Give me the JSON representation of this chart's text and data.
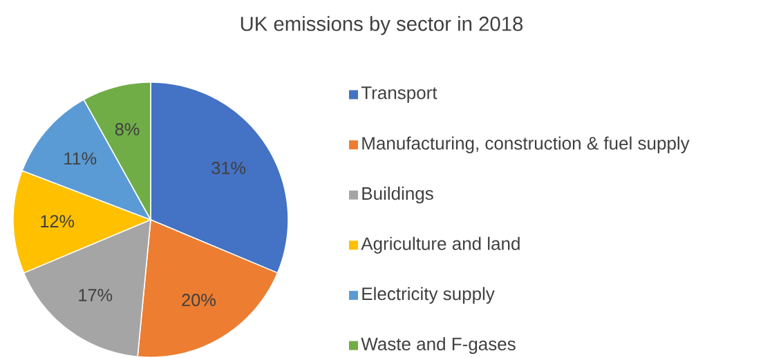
{
  "chart_data": {
    "type": "pie",
    "title": "UK emissions by sector in 2018",
    "categories": [
      "Transport",
      "Manufacturing, construction & fuel supply",
      "Buildings",
      "Agriculture and land",
      "Electricity supply",
      "Waste and F-gases"
    ],
    "values": [
      31,
      20,
      17,
      12,
      11,
      8
    ],
    "value_labels": [
      "31%",
      "20%",
      "17%",
      "12%",
      "11%",
      "8%"
    ],
    "colors": [
      "#4472c4",
      "#ed7d31",
      "#a5a5a5",
      "#ffc000",
      "#5b9bd5",
      "#70ad47"
    ],
    "legend": "right"
  }
}
